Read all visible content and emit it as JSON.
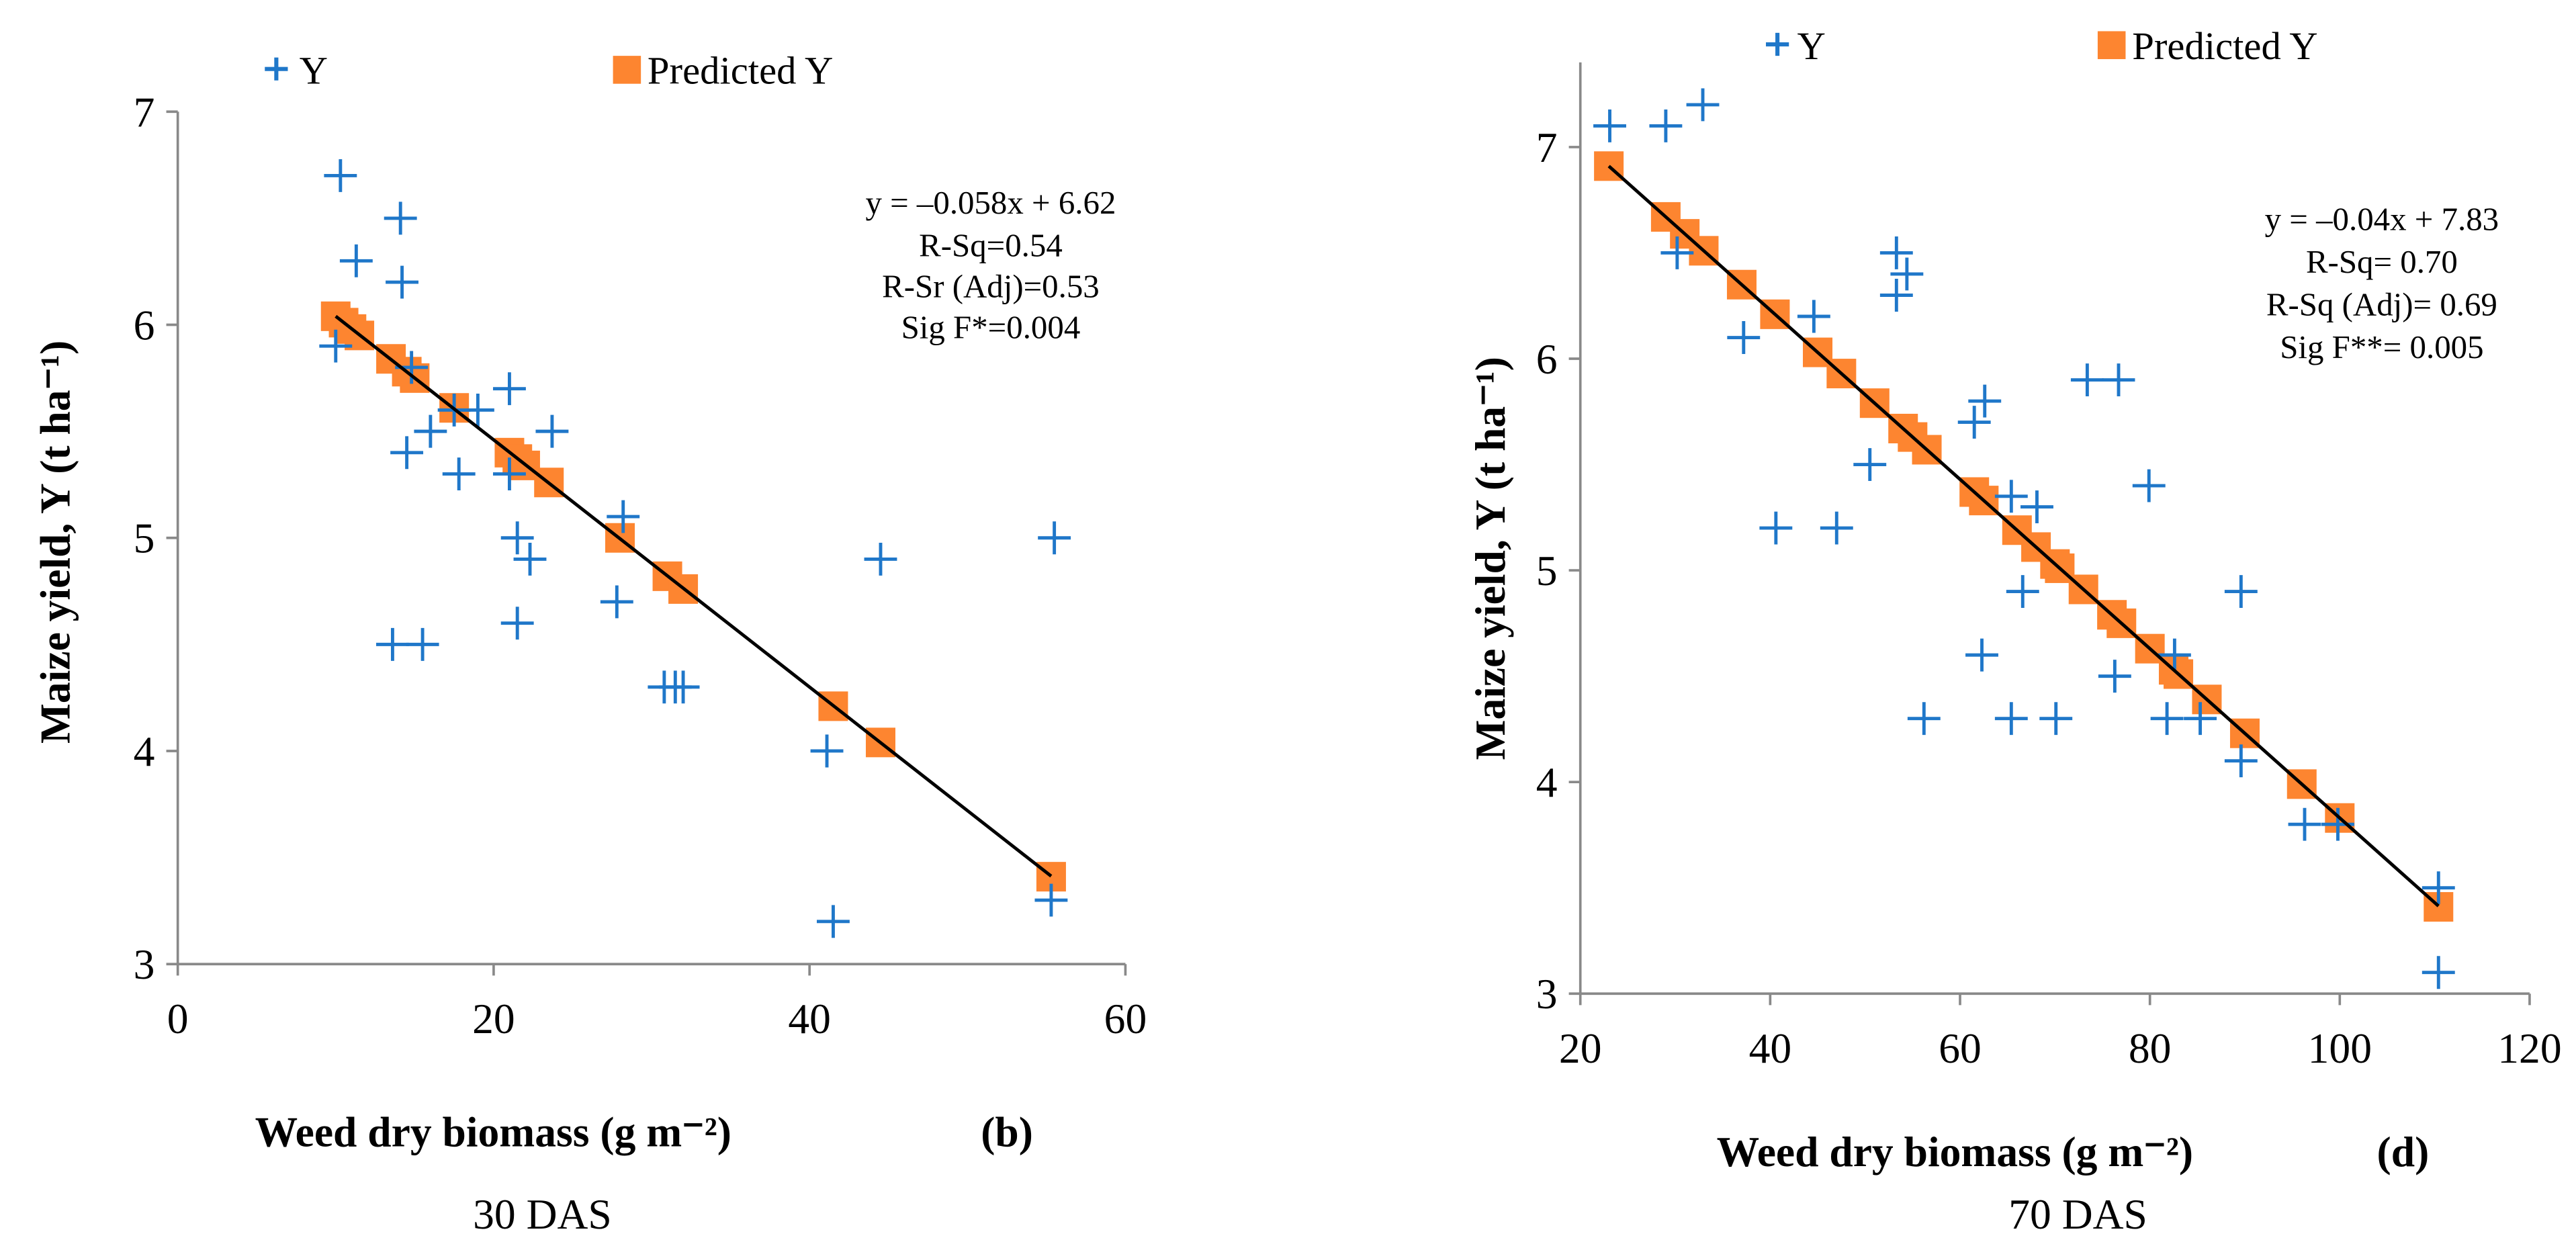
{
  "colors": {
    "observed": "#1f77c9",
    "predicted": "#fd8530",
    "fit": "#000000",
    "axis": "#898989"
  },
  "chart_data": [
    {
      "type": "scatter",
      "panel_label": "(b)",
      "caption": "30 DAS",
      "xlabel": "Weed dry biomass (g m⁻²)",
      "ylabel": "Maize yield, Y (t ha⁻¹)",
      "xlim": [
        0,
        60
      ],
      "ylim": [
        3,
        7
      ],
      "xticks": [
        "0",
        "20",
        "40",
        "60"
      ],
      "yticks": [
        "3",
        "4",
        "5",
        "6",
        "7"
      ],
      "xtick_values": [
        0,
        20,
        40,
        60
      ],
      "ytick_values": [
        3,
        4,
        5,
        6,
        7
      ],
      "legend": {
        "observed": "Y",
        "predicted": "Predicted Y",
        "placement": "top"
      },
      "annotation": [
        "y = –0.058x + 6.62",
        "R-Sq=0.54",
        "R-Sr (Adj)=0.53",
        "Sig F*=0.004"
      ],
      "fit": {
        "slope": -0.058,
        "intercept": 6.62,
        "x_range": [
          10,
          55.3
        ]
      },
      "observed": [
        [
          10.3,
          6.7
        ],
        [
          14.1,
          6.5
        ],
        [
          11.3,
          6.3
        ],
        [
          14.2,
          6.2
        ],
        [
          10,
          5.9
        ],
        [
          14.8,
          5.8
        ],
        [
          17.5,
          5.6
        ],
        [
          19,
          5.6
        ],
        [
          16,
          5.5
        ],
        [
          17.8,
          5.3
        ],
        [
          14.5,
          5.4
        ],
        [
          21,
          5.7
        ],
        [
          21,
          5.3
        ],
        [
          23.7,
          5.5
        ],
        [
          21.5,
          5.0
        ],
        [
          22.3,
          4.9
        ],
        [
          27.8,
          4.7
        ],
        [
          28.2,
          5.1
        ],
        [
          21.5,
          4.6
        ],
        [
          13.6,
          4.5
        ],
        [
          15.5,
          4.5
        ],
        [
          30.8,
          4.3
        ],
        [
          31.5,
          4.3
        ],
        [
          32,
          4.3
        ],
        [
          41.1,
          4.0
        ],
        [
          44.5,
          4.9
        ],
        [
          41.5,
          3.2
        ],
        [
          55.3,
          3.3
        ],
        [
          55.5,
          5.0
        ]
      ],
      "predicted": [
        [
          10,
          6.04
        ],
        [
          10.5,
          6.01
        ],
        [
          11,
          5.98
        ],
        [
          11.5,
          5.95
        ],
        [
          13.5,
          5.84
        ],
        [
          14.5,
          5.78
        ],
        [
          15,
          5.75
        ],
        [
          17.5,
          5.61
        ],
        [
          21,
          5.4
        ],
        [
          21.5,
          5.37
        ],
        [
          22,
          5.34
        ],
        [
          23.5,
          5.26
        ],
        [
          28,
          5.0
        ],
        [
          31,
          4.82
        ],
        [
          32,
          4.76
        ],
        [
          41.5,
          4.21
        ],
        [
          44.5,
          4.04
        ],
        [
          55.3,
          3.41
        ]
      ]
    },
    {
      "type": "scatter",
      "panel_label": "(d)",
      "caption": "70 DAS",
      "xlabel": "Weed dry biomass (g m⁻²)",
      "ylabel": "Maize yield, Y (t ha⁻¹)",
      "xlim": [
        20,
        120
      ],
      "ylim": [
        3,
        7.4
      ],
      "xticks": [
        "20",
        "40",
        "60",
        "80",
        "100",
        "120"
      ],
      "yticks": [
        "3",
        "4",
        "5",
        "6",
        "7"
      ],
      "xtick_values": [
        20,
        40,
        60,
        80,
        100,
        120
      ],
      "ytick_values": [
        3,
        4,
        5,
        6,
        7
      ],
      "legend": {
        "observed": "Y",
        "predicted": "Predicted Y",
        "placement": "top"
      },
      "annotation": [
        "y = –0.04x + 7.83",
        "R-Sq= 0.70",
        "R-Sq (Adj)= 0.69",
        "Sig F**= 0.005"
      ],
      "fit": {
        "slope": -0.04,
        "intercept": 7.83,
        "x_range": [
          23,
          110.4
        ]
      },
      "observed": [
        [
          23.1,
          7.1
        ],
        [
          29,
          7.1
        ],
        [
          32.9,
          7.2
        ],
        [
          30.2,
          6.5
        ],
        [
          37.2,
          6.1
        ],
        [
          44.6,
          6.2
        ],
        [
          53.3,
          6.5
        ],
        [
          53.3,
          6.3
        ],
        [
          54.4,
          6.4
        ],
        [
          50.5,
          5.5
        ],
        [
          40.6,
          5.2
        ],
        [
          47,
          5.2
        ],
        [
          61.5,
          5.7
        ],
        [
          62.6,
          5.8
        ],
        [
          73.4,
          5.9
        ],
        [
          76.7,
          5.9
        ],
        [
          79.9,
          5.4
        ],
        [
          68.1,
          5.3
        ],
        [
          65.4,
          5.35
        ],
        [
          66.6,
          4.9
        ],
        [
          62.3,
          4.6
        ],
        [
          56.2,
          4.3
        ],
        [
          65.4,
          4.3
        ],
        [
          70.1,
          4.3
        ],
        [
          76.3,
          4.5
        ],
        [
          81.8,
          4.3
        ],
        [
          82.6,
          4.6
        ],
        [
          85.3,
          4.3
        ],
        [
          89.6,
          4.9
        ],
        [
          89.6,
          4.1
        ],
        [
          96.3,
          3.8
        ],
        [
          99.8,
          3.8
        ],
        [
          110.4,
          3.5
        ],
        [
          110.4,
          3.1
        ]
      ],
      "predicted": [
        [
          23,
          6.91
        ],
        [
          29,
          6.67
        ],
        [
          31,
          6.59
        ],
        [
          33,
          6.51
        ],
        [
          37,
          6.35
        ],
        [
          40.5,
          6.21
        ],
        [
          45,
          6.03
        ],
        [
          47.5,
          5.93
        ],
        [
          51,
          5.79
        ],
        [
          54,
          5.67
        ],
        [
          55,
          5.63
        ],
        [
          56.5,
          5.57
        ],
        [
          61.5,
          5.37
        ],
        [
          62.5,
          5.33
        ],
        [
          66,
          5.19
        ],
        [
          68,
          5.11
        ],
        [
          70,
          5.03
        ],
        [
          70.5,
          5.01
        ],
        [
          73,
          4.91
        ],
        [
          76,
          4.79
        ],
        [
          77,
          4.75
        ],
        [
          80,
          4.63
        ],
        [
          82.5,
          4.53
        ],
        [
          83,
          4.51
        ],
        [
          86,
          4.39
        ],
        [
          90,
          4.23
        ],
        [
          96,
          3.99
        ],
        [
          100,
          3.83
        ],
        [
          110.4,
          3.41
        ]
      ]
    }
  ]
}
